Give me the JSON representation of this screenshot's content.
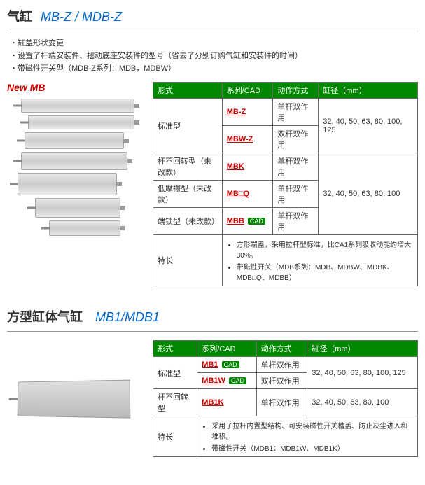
{
  "p1": {
    "title": "气缸",
    "model": "MB-Z / MDB-Z",
    "bullets": [
      "・缸盖形状变更",
      "・设置了杆端安装件、摆动底座安装件的型号（省去了分别订购气缸和安装件的时间）",
      "・带磁性开关型（MDB-Z系列：MDB，MDBW）"
    ],
    "newmb": "New MB",
    "headers": [
      "形式",
      "系列/CAD",
      "动作方式",
      "缸径（mm）"
    ],
    "rows": {
      "std": {
        "type": "标准型",
        "s1": "MB-Z",
        "a1": "单杆双作用",
        "s2": "MBW-Z",
        "a2": "双杆双作用",
        "bore": "32, 40, 50, 63, 80, 100, 125"
      },
      "nonrot": {
        "type": "杆不回转型（未改款）",
        "s": "MBK",
        "a": "单杆双作用"
      },
      "lowfric": {
        "type": "低摩擦型（未改款）",
        "s": "MB□Q",
        "a": "单杆双作用"
      },
      "endlock": {
        "type": "端锁型（未改款）",
        "s": "MBB",
        "a": "单杆双作用"
      },
      "bore2": "32, 40, 50, 63, 80, 100",
      "feat_label": "特长",
      "feats": [
        "方形端盖。采用拉杆型标准，比CA1系列吸收动能约增大30%。",
        "带磁性开关（MDB系列：MDB、MDBW、MDBK、MDB□Q、MDBB）"
      ]
    }
  },
  "p2": {
    "title": "方型缸体气缸",
    "model": "MB1/MDB1",
    "headers": [
      "形式",
      "系列/CAD",
      "动作方式",
      "缸径（mm）"
    ],
    "rows": {
      "std": {
        "type": "标准型",
        "s1": "MB1",
        "a1": "单杆双作用",
        "s2": "MB1W",
        "a2": "双杆双作用",
        "bore": "32, 40, 50, 63, 80, 100, 125"
      },
      "nonrot": {
        "type": "杆不回转型",
        "s": "MB1K",
        "a": "单杆双作用",
        "bore": "32, 40, 50, 63, 80, 100"
      },
      "feat_label": "特长",
      "feats": [
        "采用了拉杆内置型结构、可安装磁性开关槽盖、防止灰尘进入和堆积。",
        "带磁性开关（MDB1：MDB1W、MDB1K）"
      ]
    }
  },
  "cad": "CAD"
}
